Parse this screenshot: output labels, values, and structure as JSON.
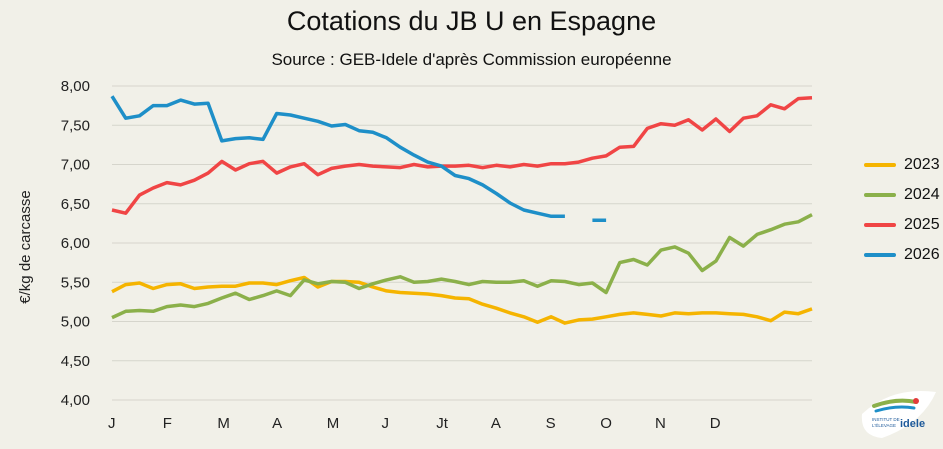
{
  "chart_data": {
    "type": "line",
    "title": "Cotations du JB U en Espagne",
    "subtitle": "Source : GEB-Idele d'après Commission européenne",
    "ylabel": "€/kg de carcasse",
    "ylim": [
      4.0,
      8.0
    ],
    "yticks": [
      "4,00",
      "4,50",
      "5,00",
      "5,50",
      "6,00",
      "6,50",
      "7,00",
      "7,50",
      "8,00"
    ],
    "xticks": [
      "J",
      "F",
      "M",
      "A",
      "M",
      "J",
      "Jt",
      "A",
      "S",
      "O",
      "N",
      "D"
    ],
    "grid": "horizontal",
    "legend_position": "right",
    "series": [
      {
        "name": "2023",
        "color": "#f5b400",
        "values": [
          5.38,
          5.47,
          5.49,
          5.42,
          5.47,
          5.48,
          5.42,
          5.44,
          5.45,
          5.45,
          5.49,
          5.49,
          5.47,
          5.52,
          5.56,
          5.44,
          5.51,
          5.51,
          5.5,
          5.44,
          5.39,
          5.37,
          5.36,
          5.35,
          5.33,
          5.3,
          5.29,
          5.22,
          5.17,
          5.11,
          5.06,
          4.99,
          5.06,
          4.98,
          5.02,
          5.03,
          5.06,
          5.09,
          5.11,
          5.09,
          5.07,
          5.11,
          5.1,
          5.11,
          5.11,
          5.1,
          5.09,
          5.06,
          5.01,
          5.12,
          5.1,
          5.16
        ]
      },
      {
        "name": "2024",
        "color": "#8bb04a",
        "values": [
          5.05,
          5.13,
          5.14,
          5.13,
          5.19,
          5.21,
          5.19,
          5.23,
          5.3,
          5.36,
          5.28,
          5.33,
          5.39,
          5.33,
          5.53,
          5.48,
          5.51,
          5.5,
          5.42,
          5.48,
          5.53,
          5.57,
          5.5,
          5.51,
          5.54,
          5.51,
          5.47,
          5.51,
          5.5,
          5.5,
          5.52,
          5.45,
          5.52,
          5.51,
          5.47,
          5.49,
          5.37,
          5.75,
          5.79,
          5.72,
          5.91,
          5.95,
          5.87,
          5.65,
          5.77,
          6.07,
          5.96,
          6.11,
          6.17,
          6.24,
          6.27,
          6.36
        ]
      },
      {
        "name": "2025",
        "color": "#f04545",
        "values": [
          6.42,
          6.38,
          6.61,
          6.7,
          6.77,
          6.74,
          6.8,
          6.89,
          7.04,
          6.93,
          7.01,
          7.04,
          6.89,
          6.97,
          7.01,
          6.87,
          6.95,
          6.98,
          7.0,
          6.98,
          6.97,
          6.96,
          7.0,
          6.97,
          6.98,
          6.98,
          6.99,
          6.96,
          6.99,
          6.97,
          7.0,
          6.98,
          7.01,
          7.01,
          7.03,
          7.08,
          7.11,
          7.22,
          7.23,
          7.46,
          7.52,
          7.5,
          7.57,
          7.44,
          7.58,
          7.42,
          7.59,
          7.62,
          7.76,
          7.71,
          7.84,
          7.85
        ]
      },
      {
        "name": "2026",
        "color": "#1e8fc8",
        "values": [
          7.87,
          7.59,
          7.62,
          7.75,
          7.75,
          7.82,
          7.77,
          7.78,
          7.3,
          7.33,
          7.34,
          7.32,
          7.65,
          7.63,
          7.59,
          7.55,
          7.49,
          7.51,
          7.43,
          7.41,
          7.34,
          7.22,
          7.12,
          7.03,
          6.98,
          6.86,
          6.82,
          6.74,
          6.63,
          6.51,
          6.42,
          6.38,
          6.34,
          6.34,
          null,
          6.29,
          6.29,
          null,
          null,
          null,
          null,
          null,
          null,
          null,
          null,
          null,
          null,
          null,
          null,
          null,
          null,
          null
        ]
      }
    ]
  },
  "logo": {
    "text1": "INSTITUT DE",
    "text2": "L'ÉLEVAGE",
    "brand": "idele"
  }
}
